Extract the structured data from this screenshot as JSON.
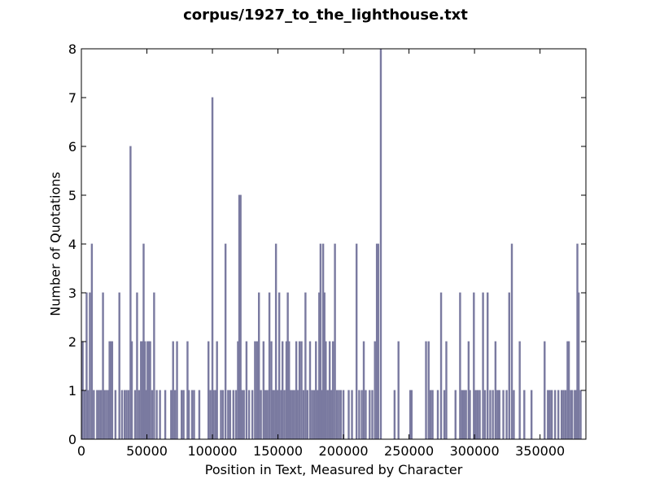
{
  "chart_data": {
    "type": "bar",
    "title": "corpus/1927_to_the_lighthouse.txt",
    "xlabel": "Position in Text, Measured by Character",
    "ylabel": "Number of Quotations",
    "xlim": [
      0,
      385000
    ],
    "ylim": [
      0,
      8
    ],
    "xticks": [
      0,
      50000,
      100000,
      150000,
      200000,
      250000,
      300000,
      350000
    ],
    "yticks": [
      0,
      1,
      2,
      3,
      4,
      5,
      6,
      7,
      8
    ],
    "grid": false,
    "bar_color": "#7a7aa0",
    "bar_width": 1000,
    "points": [
      [
        1000,
        2
      ],
      [
        2500,
        1
      ],
      [
        4000,
        3
      ],
      [
        5000,
        1
      ],
      [
        6500,
        3
      ],
      [
        8000,
        4
      ],
      [
        9500,
        1
      ],
      [
        12000,
        1
      ],
      [
        13500,
        1
      ],
      [
        15000,
        1
      ],
      [
        16500,
        3
      ],
      [
        17500,
        1
      ],
      [
        19000,
        1
      ],
      [
        20500,
        1
      ],
      [
        21500,
        2
      ],
      [
        22500,
        2
      ],
      [
        23500,
        2
      ],
      [
        26000,
        1
      ],
      [
        29000,
        3
      ],
      [
        31000,
        1
      ],
      [
        33000,
        1
      ],
      [
        34500,
        1
      ],
      [
        36000,
        1
      ],
      [
        37500,
        6
      ],
      [
        38500,
        2
      ],
      [
        41000,
        1
      ],
      [
        42500,
        3
      ],
      [
        44000,
        1
      ],
      [
        45500,
        2
      ],
      [
        46500,
        2
      ],
      [
        47500,
        4
      ],
      [
        48500,
        2
      ],
      [
        49500,
        1
      ],
      [
        50500,
        2
      ],
      [
        51500,
        2
      ],
      [
        52500,
        2
      ],
      [
        54000,
        1
      ],
      [
        55500,
        3
      ],
      [
        57500,
        1
      ],
      [
        60000,
        1
      ],
      [
        64000,
        1
      ],
      [
        68500,
        1
      ],
      [
        70000,
        2
      ],
      [
        71500,
        1
      ],
      [
        73000,
        2
      ],
      [
        76500,
        1
      ],
      [
        78000,
        1
      ],
      [
        81000,
        2
      ],
      [
        82000,
        1
      ],
      [
        84500,
        1
      ],
      [
        86000,
        1
      ],
      [
        90000,
        1
      ],
      [
        97000,
        2
      ],
      [
        98500,
        1
      ],
      [
        100000,
        7
      ],
      [
        101000,
        1
      ],
      [
        102500,
        1
      ],
      [
        103500,
        2
      ],
      [
        106500,
        1
      ],
      [
        108000,
        1
      ],
      [
        110000,
        4
      ],
      [
        112000,
        1
      ],
      [
        113500,
        1
      ],
      [
        116000,
        1
      ],
      [
        118000,
        1
      ],
      [
        119500,
        2
      ],
      [
        120500,
        5
      ],
      [
        121500,
        5
      ],
      [
        122500,
        1
      ],
      [
        124000,
        1
      ],
      [
        126000,
        2
      ],
      [
        128000,
        1
      ],
      [
        130500,
        1
      ],
      [
        132500,
        2
      ],
      [
        134000,
        2
      ],
      [
        135500,
        3
      ],
      [
        137000,
        1
      ],
      [
        139000,
        2
      ],
      [
        140500,
        1
      ],
      [
        142000,
        1
      ],
      [
        143500,
        3
      ],
      [
        145000,
        2
      ],
      [
        146000,
        1
      ],
      [
        147000,
        1
      ],
      [
        148500,
        4
      ],
      [
        149500,
        1
      ],
      [
        151000,
        3
      ],
      [
        152500,
        1
      ],
      [
        153500,
        2
      ],
      [
        155000,
        1
      ],
      [
        156500,
        2
      ],
      [
        157500,
        3
      ],
      [
        158500,
        2
      ],
      [
        159500,
        1
      ],
      [
        161000,
        1
      ],
      [
        162500,
        1
      ],
      [
        164000,
        2
      ],
      [
        165000,
        1
      ],
      [
        166500,
        2
      ],
      [
        168000,
        2
      ],
      [
        169500,
        1
      ],
      [
        171000,
        3
      ],
      [
        172500,
        1
      ],
      [
        174500,
        2
      ],
      [
        176000,
        1
      ],
      [
        177500,
        1
      ],
      [
        179000,
        2
      ],
      [
        180500,
        1
      ],
      [
        181500,
        3
      ],
      [
        182500,
        4
      ],
      [
        183500,
        1
      ],
      [
        184500,
        4
      ],
      [
        185500,
        3
      ],
      [
        186500,
        2
      ],
      [
        188000,
        1
      ],
      [
        189500,
        2
      ],
      [
        190500,
        1
      ],
      [
        192000,
        2
      ],
      [
        193500,
        4
      ],
      [
        195000,
        1
      ],
      [
        196500,
        1
      ],
      [
        198000,
        1
      ],
      [
        200000,
        1
      ],
      [
        204000,
        1
      ],
      [
        206500,
        1
      ],
      [
        210000,
        4
      ],
      [
        212000,
        1
      ],
      [
        214000,
        1
      ],
      [
        215500,
        2
      ],
      [
        217000,
        1
      ],
      [
        220000,
        1
      ],
      [
        222000,
        1
      ],
      [
        224000,
        2
      ],
      [
        225500,
        4
      ],
      [
        226500,
        4
      ],
      [
        228500,
        8
      ],
      [
        239000,
        1
      ],
      [
        242000,
        2
      ],
      [
        251000,
        1
      ],
      [
        252000,
        1
      ],
      [
        263000,
        2
      ],
      [
        265000,
        2
      ],
      [
        266500,
        1
      ],
      [
        268000,
        1
      ],
      [
        272000,
        1
      ],
      [
        274500,
        3
      ],
      [
        277000,
        1
      ],
      [
        278500,
        2
      ],
      [
        285500,
        1
      ],
      [
        289000,
        3
      ],
      [
        290500,
        1
      ],
      [
        292000,
        1
      ],
      [
        293500,
        1
      ],
      [
        295500,
        2
      ],
      [
        296500,
        1
      ],
      [
        299500,
        3
      ],
      [
        301000,
        1
      ],
      [
        302500,
        1
      ],
      [
        304000,
        1
      ],
      [
        306500,
        3
      ],
      [
        308000,
        1
      ],
      [
        310000,
        3
      ],
      [
        312000,
        1
      ],
      [
        314000,
        1
      ],
      [
        316000,
        2
      ],
      [
        317500,
        1
      ],
      [
        319000,
        1
      ],
      [
        322000,
        1
      ],
      [
        324500,
        1
      ],
      [
        326500,
        3
      ],
      [
        328500,
        4
      ],
      [
        330000,
        1
      ],
      [
        334500,
        2
      ],
      [
        338000,
        1
      ],
      [
        343500,
        1
      ],
      [
        353500,
        2
      ],
      [
        356000,
        1
      ],
      [
        357500,
        1
      ],
      [
        359000,
        1
      ],
      [
        361500,
        1
      ],
      [
        364000,
        1
      ],
      [
        366500,
        1
      ],
      [
        368000,
        1
      ],
      [
        369500,
        1
      ],
      [
        371000,
        2
      ],
      [
        372000,
        2
      ],
      [
        373500,
        1
      ],
      [
        374500,
        1
      ],
      [
        376500,
        1
      ],
      [
        377500,
        1
      ],
      [
        378500,
        4
      ],
      [
        379500,
        3
      ],
      [
        381000,
        1
      ]
    ]
  }
}
